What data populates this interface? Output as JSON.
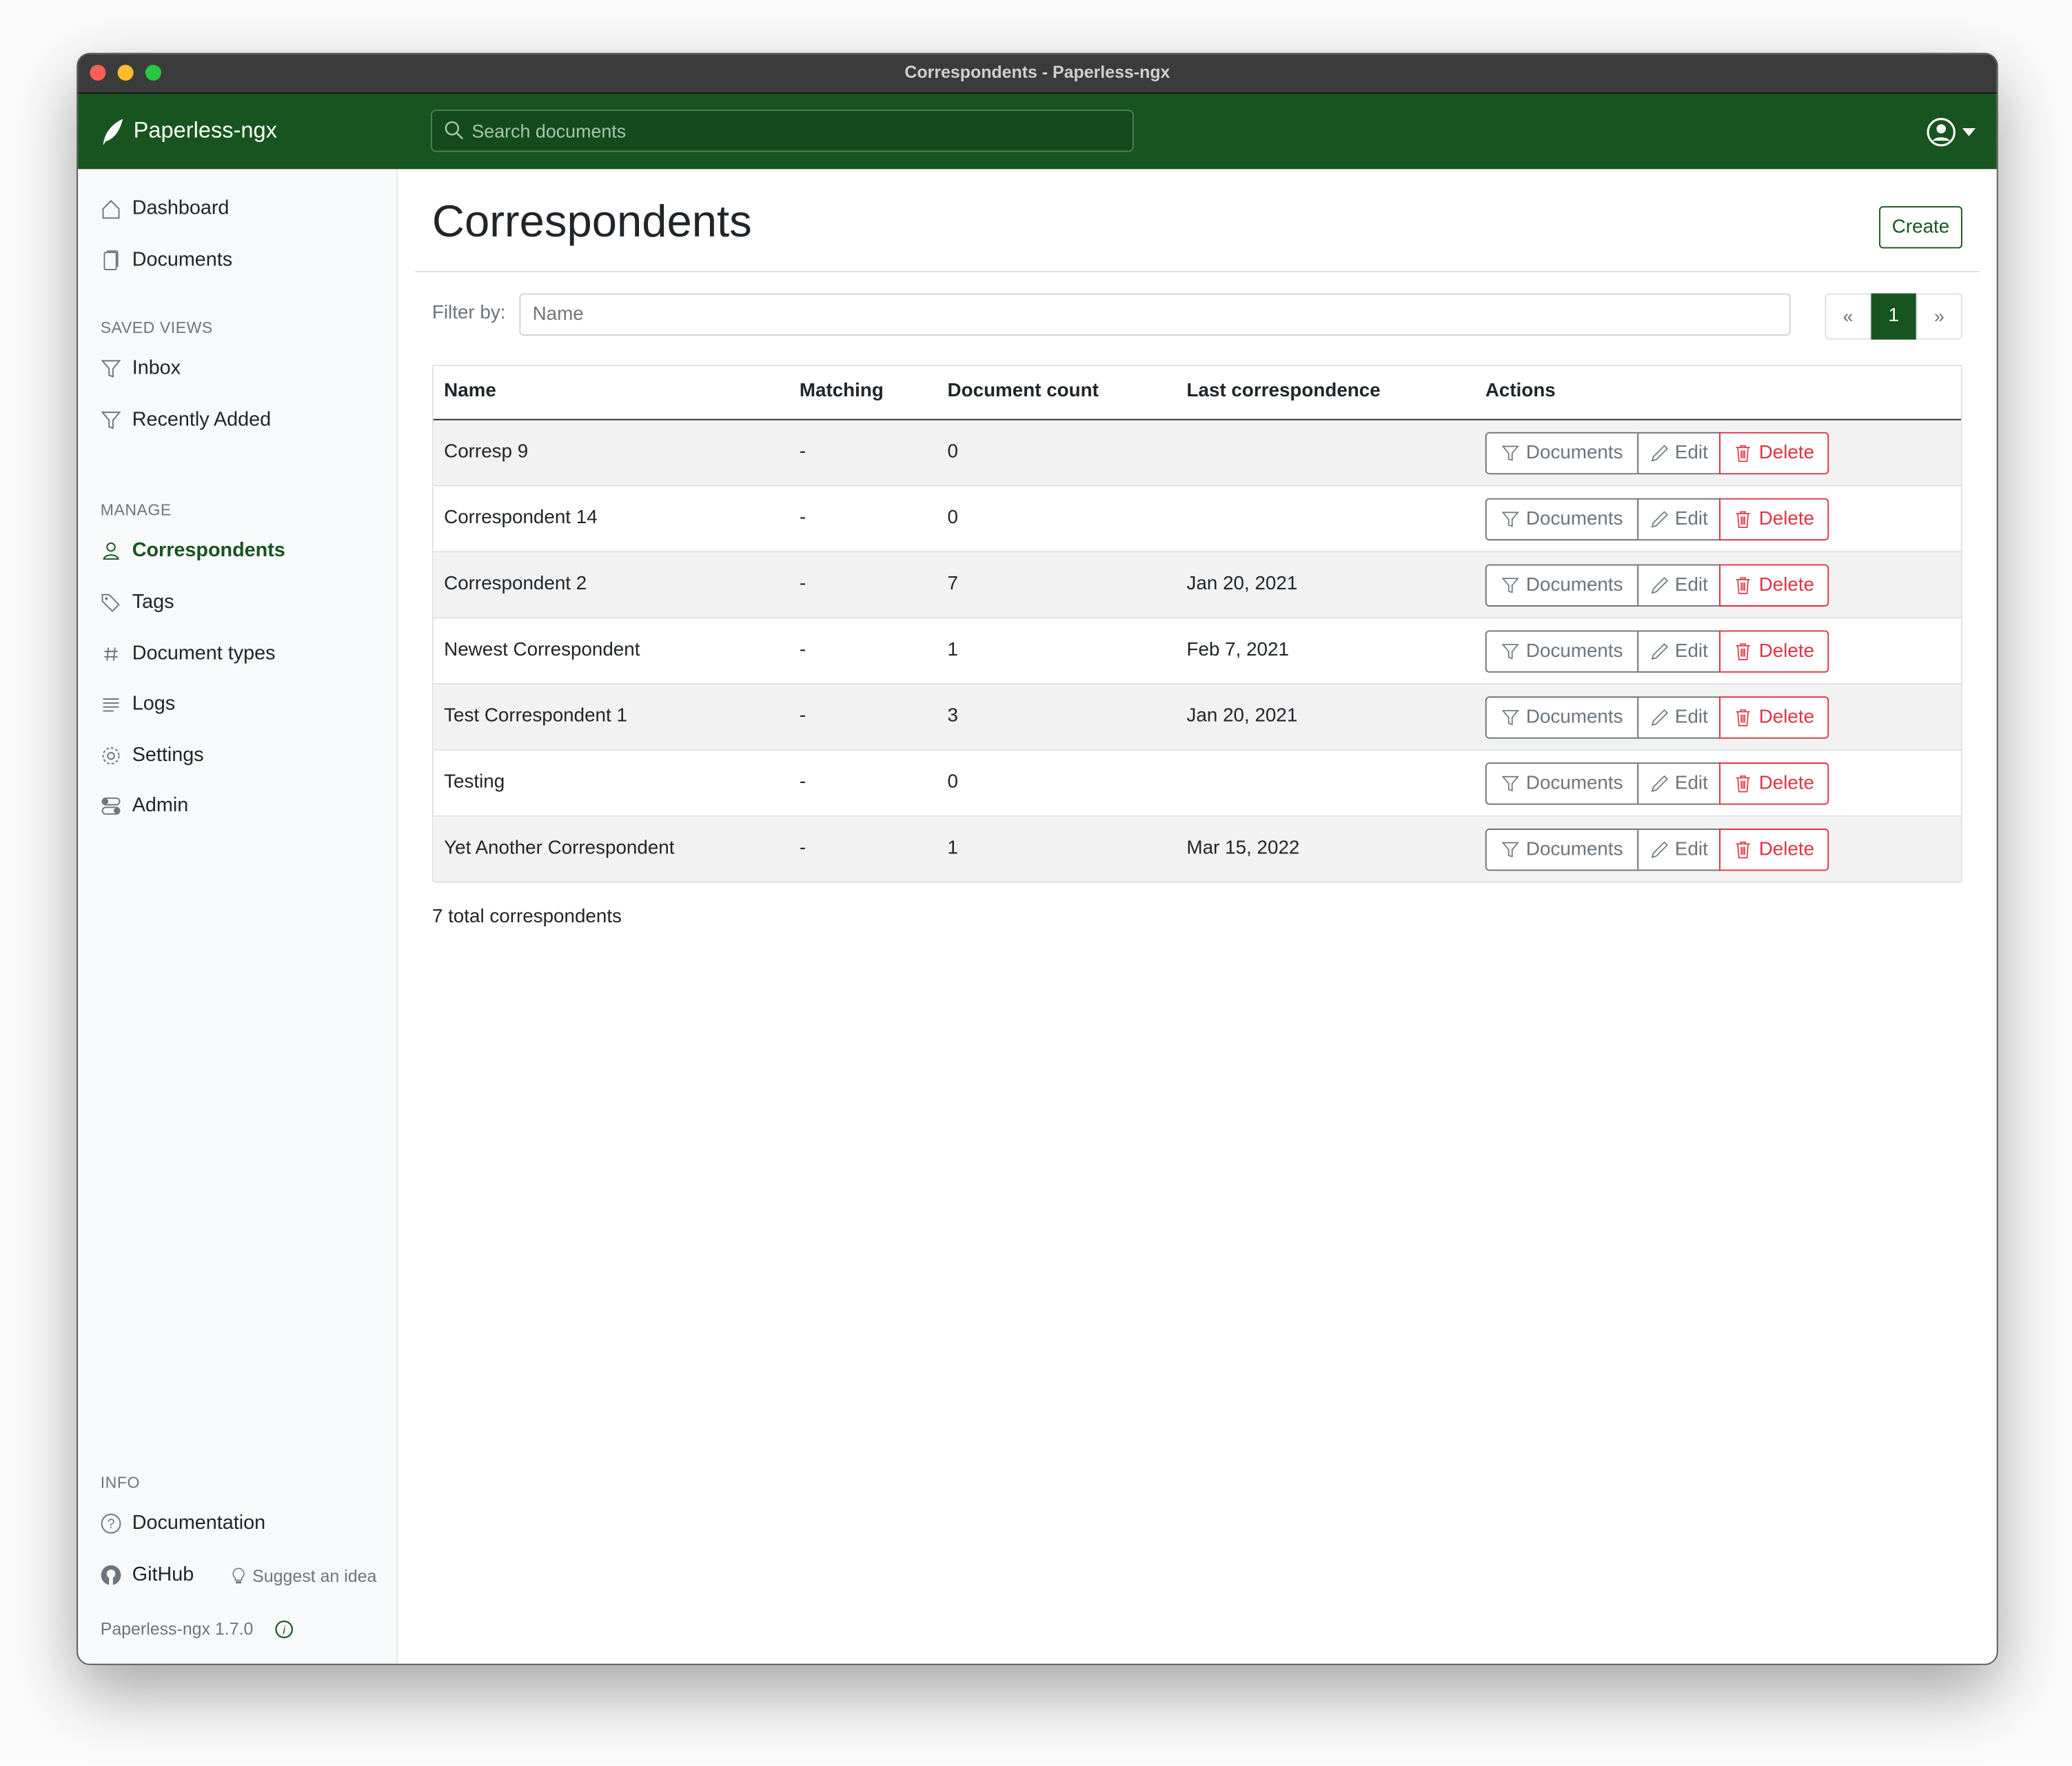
{
  "window": {
    "title": "Correspondents - Paperless-ngx"
  },
  "topbar": {
    "brand": "Paperless-ngx",
    "search_placeholder": "Search documents"
  },
  "sidebar": {
    "main": [
      {
        "label": "Dashboard",
        "icon": "house-icon"
      },
      {
        "label": "Documents",
        "icon": "files-icon"
      }
    ],
    "saved_views_heading": "SAVED VIEWS",
    "saved_views": [
      {
        "label": "Inbox",
        "icon": "funnel-icon"
      },
      {
        "label": "Recently Added",
        "icon": "funnel-icon"
      }
    ],
    "manage_heading": "MANAGE",
    "manage": [
      {
        "label": "Correspondents",
        "icon": "person-icon",
        "active": true
      },
      {
        "label": "Tags",
        "icon": "tag-icon"
      },
      {
        "label": "Document types",
        "icon": "hash-icon"
      },
      {
        "label": "Logs",
        "icon": "text-lines-icon"
      },
      {
        "label": "Settings",
        "icon": "gear-icon"
      },
      {
        "label": "Admin",
        "icon": "toggles-icon"
      }
    ],
    "info_heading": "INFO",
    "documentation": "Documentation",
    "github": "GitHub",
    "suggest": "Suggest an idea",
    "version": "Paperless-ngx 1.7.0"
  },
  "page": {
    "title": "Correspondents",
    "create_label": "Create",
    "filter_label": "Filter by:",
    "filter_placeholder": "Name",
    "pagination": {
      "prev": "«",
      "current": "1",
      "next": "»"
    },
    "total": "7 total correspondents"
  },
  "table": {
    "columns": [
      "Name",
      "Matching",
      "Document count",
      "Last correspondence",
      "Actions"
    ],
    "actions": {
      "documents": "Documents",
      "edit": "Edit",
      "delete": "Delete"
    },
    "rows": [
      {
        "name": "Corresp 9",
        "matching": "-",
        "count": "0",
        "last": ""
      },
      {
        "name": "Correspondent 14",
        "matching": "-",
        "count": "0",
        "last": ""
      },
      {
        "name": "Correspondent 2",
        "matching": "-",
        "count": "7",
        "last": "Jan 20, 2021"
      },
      {
        "name": "Newest Correspondent",
        "matching": "-",
        "count": "1",
        "last": "Feb 7, 2021"
      },
      {
        "name": "Test Correspondent 1",
        "matching": "-",
        "count": "3",
        "last": "Jan 20, 2021"
      },
      {
        "name": "Testing",
        "matching": "-",
        "count": "0",
        "last": ""
      },
      {
        "name": "Yet Another Correspondent",
        "matching": "-",
        "count": "1",
        "last": "Mar 15, 2022"
      }
    ]
  },
  "colors": {
    "brand": "#17541f",
    "danger": "#dc3545",
    "secondary": "#6c757d"
  }
}
